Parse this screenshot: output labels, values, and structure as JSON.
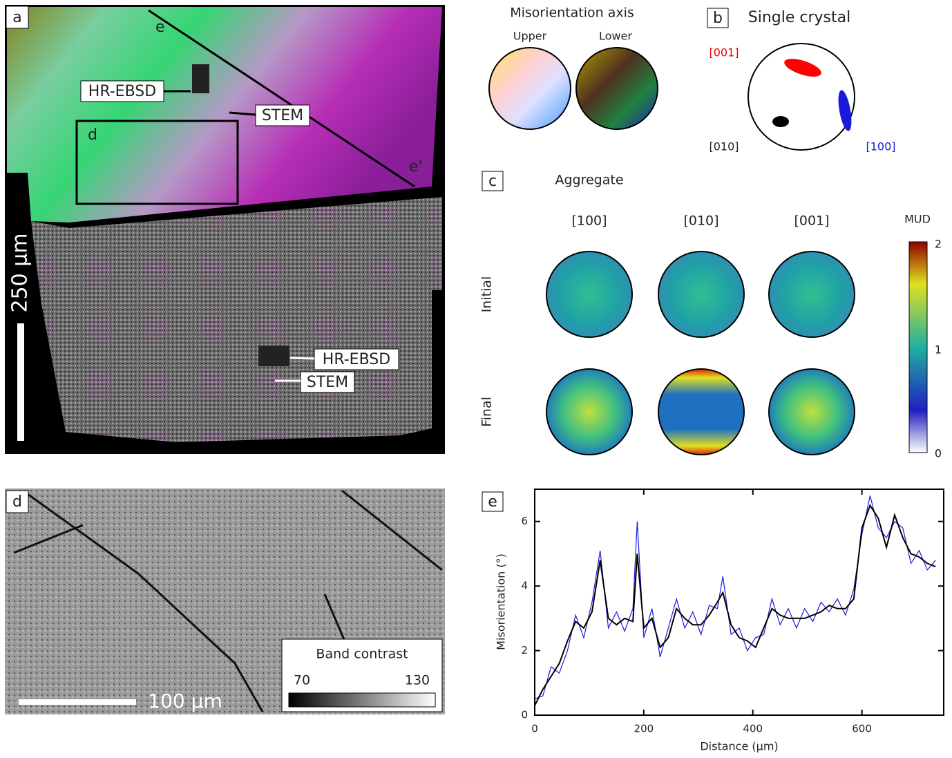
{
  "panels": {
    "a": {
      "label": "a",
      "line_start": "e",
      "line_end": "e'",
      "box": "d",
      "scale_bar": "250 µm",
      "upper_callouts": [
        "HR-EBSD",
        "STEM"
      ],
      "lower_callouts": [
        "HR-EBSD",
        "STEM"
      ]
    },
    "key": {
      "title": "Misorientation axis",
      "upper": "Upper",
      "lower": "Lower"
    },
    "b": {
      "label": "b",
      "title": "Single crystal",
      "axes": [
        "[001]",
        "[010]",
        "[100]"
      ]
    },
    "c": {
      "label": "c",
      "title": "Aggregate",
      "columns": [
        "[100]",
        "[010]",
        "[001]"
      ],
      "rows": [
        "Initial",
        "Final"
      ],
      "colorbar_title": "MUD",
      "colorbar_ticks": [
        2,
        1,
        0
      ]
    },
    "d": {
      "label": "d",
      "scale_bar": "100 µm",
      "legend_title": "Band contrast",
      "legend_min": 70,
      "legend_max": 130
    },
    "e": {
      "label": "e"
    }
  },
  "chart_data": {
    "type": "line",
    "xlabel": "Distance (μm)",
    "ylabel": "Misorientation (°)",
    "x": [
      0,
      15,
      30,
      45,
      60,
      75,
      90,
      105,
      120,
      135,
      150,
      165,
      180,
      188,
      200,
      215,
      230,
      245,
      260,
      275,
      290,
      305,
      320,
      335,
      345,
      360,
      375,
      390,
      405,
      420,
      435,
      450,
      465,
      480,
      495,
      510,
      525,
      540,
      555,
      570,
      585,
      600,
      615,
      630,
      645,
      660,
      675,
      690,
      705,
      720,
      735
    ],
    "series": [
      {
        "color": "#1a1adb",
        "values": [
          0.5,
          0.6,
          1.5,
          1.3,
          2.0,
          3.1,
          2.4,
          3.5,
          5.1,
          2.7,
          3.2,
          2.6,
          3.3,
          6.0,
          2.4,
          3.3,
          1.8,
          2.7,
          3.6,
          2.7,
          3.2,
          2.5,
          3.4,
          3.3,
          4.3,
          2.5,
          2.7,
          2.0,
          2.4,
          2.5,
          3.6,
          2.8,
          3.3,
          2.7,
          3.3,
          2.9,
          3.5,
          3.2,
          3.6,
          3.1,
          3.9,
          5.6,
          6.8,
          5.8,
          5.5,
          6.0,
          5.8,
          4.7,
          5.1,
          4.5,
          4.8
        ]
      },
      {
        "color": "#000000",
        "values": [
          0.3,
          0.8,
          1.2,
          1.6,
          2.3,
          2.9,
          2.7,
          3.2,
          4.8,
          3.0,
          2.8,
          3.0,
          2.9,
          5.0,
          2.7,
          3.0,
          2.1,
          2.4,
          3.3,
          3.0,
          2.8,
          2.8,
          3.1,
          3.5,
          3.8,
          2.8,
          2.4,
          2.3,
          2.1,
          2.7,
          3.3,
          3.1,
          3.0,
          3.0,
          3.0,
          3.1,
          3.2,
          3.4,
          3.3,
          3.3,
          3.6,
          5.8,
          6.5,
          6.1,
          5.2,
          6.2,
          5.5,
          5.0,
          4.9,
          4.7,
          4.6
        ]
      }
    ],
    "xlim": [
      0,
      750
    ],
    "ylim": [
      0,
      7
    ],
    "xticks": [
      0,
      200,
      400,
      600
    ],
    "yticks": [
      0,
      2,
      4,
      6
    ]
  }
}
